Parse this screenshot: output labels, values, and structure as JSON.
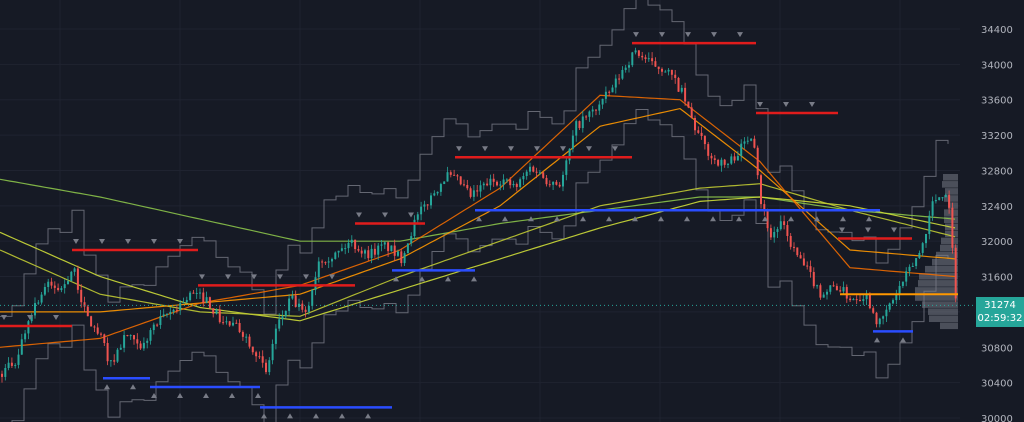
{
  "chart_data": {
    "type": "candlestick",
    "title": "",
    "xlabel": "",
    "ylabel": "",
    "ylim": [
      30000,
      34600
    ],
    "y_ticks": [
      34400,
      34000,
      33600,
      33200,
      32800,
      32400,
      32000,
      31600,
      31200,
      30800,
      30400,
      30000
    ],
    "last_price": "31274",
    "countdown": "02:59:32",
    "grid": true,
    "close_path": [
      [
        0,
        30500
      ],
      [
        15,
        30650
      ],
      [
        30,
        31200
      ],
      [
        45,
        31500
      ],
      [
        60,
        31450
      ],
      [
        72,
        31700
      ],
      [
        85,
        31150
      ],
      [
        100,
        30900
      ],
      [
        110,
        30600
      ],
      [
        125,
        30950
      ],
      [
        140,
        30750
      ],
      [
        150,
        31000
      ],
      [
        170,
        31200
      ],
      [
        190,
        31400
      ],
      [
        205,
        31350
      ],
      [
        220,
        31100
      ],
      [
        240,
        31000
      ],
      [
        255,
        30750
      ],
      [
        265,
        30500
      ],
      [
        275,
        31000
      ],
      [
        290,
        31350
      ],
      [
        305,
        31150
      ],
      [
        318,
        31800
      ],
      [
        335,
        31850
      ],
      [
        350,
        32000
      ],
      [
        365,
        31850
      ],
      [
        385,
        31950
      ],
      [
        400,
        31800
      ],
      [
        415,
        32250
      ],
      [
        430,
        32500
      ],
      [
        445,
        32750
      ],
      [
        460,
        32650
      ],
      [
        470,
        32500
      ],
      [
        485,
        32650
      ],
      [
        500,
        32700
      ],
      [
        515,
        32600
      ],
      [
        530,
        32850
      ],
      [
        545,
        32700
      ],
      [
        560,
        32650
      ],
      [
        575,
        33300
      ],
      [
        595,
        33500
      ],
      [
        610,
        33700
      ],
      [
        625,
        34000
      ],
      [
        635,
        34150
      ],
      [
        650,
        34000
      ],
      [
        665,
        33950
      ],
      [
        680,
        33700
      ],
      [
        695,
        33250
      ],
      [
        710,
        32950
      ],
      [
        725,
        32850
      ],
      [
        740,
        33050
      ],
      [
        752,
        33250
      ],
      [
        760,
        32450
      ],
      [
        770,
        32050
      ],
      [
        780,
        32200
      ],
      [
        795,
        31850
      ],
      [
        810,
        31600
      ],
      [
        820,
        31400
      ],
      [
        835,
        31500
      ],
      [
        850,
        31350
      ],
      [
        865,
        31400
      ],
      [
        878,
        31050
      ],
      [
        890,
        31300
      ],
      [
        905,
        31600
      ],
      [
        920,
        31900
      ],
      [
        932,
        32450
      ],
      [
        942,
        32550
      ],
      [
        948,
        32450
      ],
      [
        955,
        31274
      ]
    ],
    "moving_averages": [
      {
        "color": "#8bc34a",
        "values": [
          [
            0,
            32700
          ],
          [
            100,
            32500
          ],
          [
            200,
            32250
          ],
          [
            300,
            32000
          ],
          [
            400,
            32000
          ],
          [
            500,
            32200
          ],
          [
            600,
            32350
          ],
          [
            700,
            32500
          ],
          [
            760,
            32500
          ],
          [
            850,
            32350
          ],
          [
            955,
            32250
          ]
        ]
      },
      {
        "color": "#cddc39",
        "values": [
          [
            0,
            32100
          ],
          [
            100,
            31600
          ],
          [
            200,
            31250
          ],
          [
            300,
            31100
          ],
          [
            400,
            31450
          ],
          [
            500,
            31800
          ],
          [
            600,
            32150
          ],
          [
            700,
            32450
          ],
          [
            760,
            32500
          ],
          [
            850,
            32400
          ],
          [
            955,
            32150
          ]
        ]
      },
      {
        "color": "#c0ca33",
        "values": [
          [
            0,
            31900
          ],
          [
            100,
            31400
          ],
          [
            200,
            31200
          ],
          [
            300,
            31150
          ],
          [
            400,
            31600
          ],
          [
            500,
            32000
          ],
          [
            600,
            32400
          ],
          [
            700,
            32600
          ],
          [
            760,
            32650
          ],
          [
            850,
            32350
          ],
          [
            955,
            32050
          ]
        ]
      },
      {
        "color": "#ff9800",
        "values": [
          [
            0,
            31200
          ],
          [
            100,
            31200
          ],
          [
            200,
            31300
          ],
          [
            300,
            31400
          ],
          [
            400,
            31800
          ],
          [
            500,
            32400
          ],
          [
            600,
            33300
          ],
          [
            680,
            33500
          ],
          [
            760,
            32800
          ],
          [
            850,
            31900
          ],
          [
            955,
            31800
          ]
        ]
      },
      {
        "color": "#ef6c00",
        "values": [
          [
            0,
            30800
          ],
          [
            100,
            30900
          ],
          [
            200,
            31300
          ],
          [
            300,
            31500
          ],
          [
            400,
            31900
          ],
          [
            500,
            32600
          ],
          [
            600,
            33650
          ],
          [
            680,
            33600
          ],
          [
            760,
            32900
          ],
          [
            850,
            31700
          ],
          [
            955,
            31600
          ]
        ]
      }
    ],
    "resistance_levels": [
      {
        "x1": 0,
        "x2": 72,
        "y": 31040
      },
      {
        "x1": 72,
        "x2": 198,
        "y": 31900
      },
      {
        "x1": 198,
        "x2": 355,
        "y": 31500
      },
      {
        "x1": 355,
        "x2": 425,
        "y": 32200
      },
      {
        "x1": 455,
        "x2": 632,
        "y": 32950
      },
      {
        "x1": 632,
        "x2": 756,
        "y": 34240
      },
      {
        "x1": 756,
        "x2": 838,
        "y": 33450
      },
      {
        "x1": 838,
        "x2": 912,
        "y": 32030
      }
    ],
    "support_levels": [
      {
        "x1": 103,
        "x2": 150,
        "y": 30450
      },
      {
        "x1": 150,
        "x2": 260,
        "y": 30350
      },
      {
        "x1": 260,
        "x2": 392,
        "y": 30120
      },
      {
        "x1": 392,
        "x2": 475,
        "y": 31670
      },
      {
        "x1": 475,
        "x2": 880,
        "y": 32350
      },
      {
        "x1": 873,
        "x2": 913,
        "y": 30980
      }
    ],
    "current_price_line": 31400
  }
}
